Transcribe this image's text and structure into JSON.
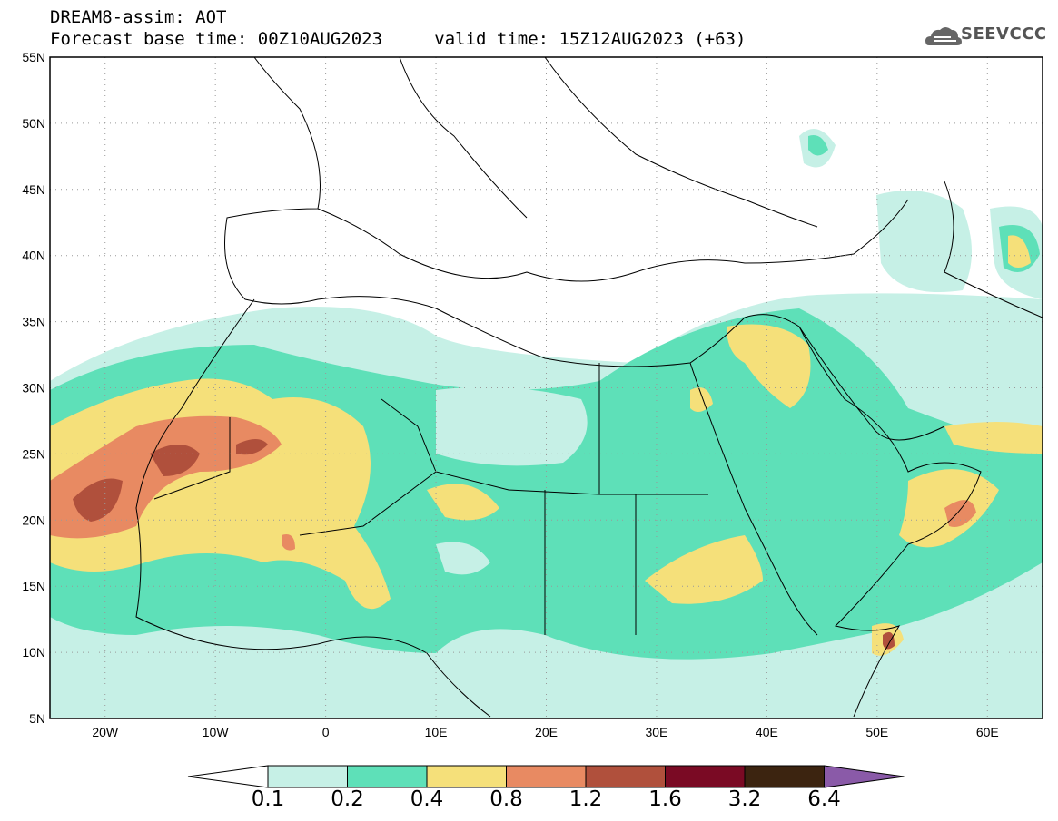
{
  "title": {
    "line1": "DREAM8-assim: AOT",
    "line2_left": "Forecast base time: 00Z10AUG2023",
    "line2_right": "valid time: 15Z12AUG2023 (+63)"
  },
  "logo": {
    "text": "SEEVCCC",
    "icon": "cloud-logo-icon"
  },
  "map": {
    "lat_labels": [
      "55N",
      "50N",
      "45N",
      "40N",
      "35N",
      "30N",
      "25N",
      "20N",
      "15N",
      "10N",
      "5N"
    ],
    "lon_labels": [
      "20W",
      "10W",
      "0",
      "10E",
      "20E",
      "30E",
      "40E",
      "50E",
      "60E"
    ],
    "lat_range": [
      5,
      55
    ],
    "lon_range": [
      -25,
      65
    ],
    "grid": "dotted"
  },
  "legend": {
    "levels": [
      "0.1",
      "0.2",
      "0.4",
      "0.8",
      "1.2",
      "1.6",
      "3.2",
      "6.4"
    ],
    "colors": [
      "#ffffff",
      "#c6f0e6",
      "#5ee0b8",
      "#f5e07a",
      "#e88a62",
      "#b0503c",
      "#7a0a24",
      "#3c2410",
      "#8a5aa8"
    ]
  }
}
